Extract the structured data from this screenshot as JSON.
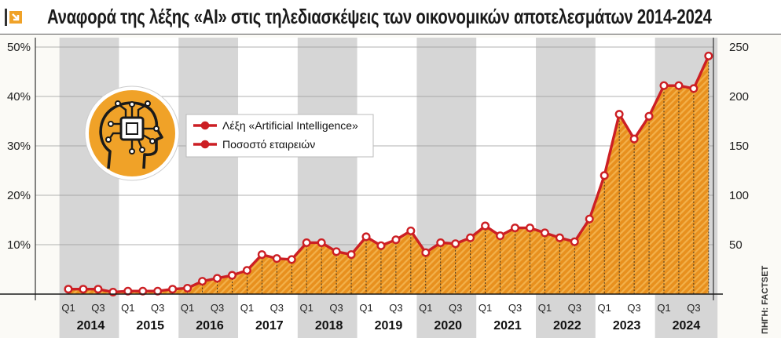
{
  "title": "Αναφορά της λέξης «AI» στις τηλεδιασκέψεις των οικονομικών αποτελεσμάτων 2014-2024",
  "source": "ΠΗΓΗ: FACTSET",
  "colors": {
    "line": "#cc1f24",
    "area_fill": "#e8901e",
    "area_stripes": "#f2b04a",
    "band_gray": "#d6d6d6",
    "icon_circle": "#f0a228",
    "axis": "#333333"
  },
  "icon": "ai-head-chip-icon",
  "chart_data": {
    "type": "line",
    "legend": {
      "placement": "top-left",
      "entries": [
        "Λέξη «Artificial Intelligence»",
        "Ποσοστό εταιρειών"
      ]
    },
    "y_left": {
      "ticks": [
        "10%",
        "20%",
        "30%",
        "40%",
        "50%"
      ],
      "range": [
        0,
        50
      ]
    },
    "y_right": {
      "ticks": [
        "50",
        "100",
        "150",
        "200",
        "250"
      ],
      "range": [
        0,
        250
      ]
    },
    "years": [
      "2014",
      "2015",
      "2016",
      "2017",
      "2018",
      "2019",
      "2020",
      "2021",
      "2022",
      "2023",
      "2024"
    ],
    "quarter_labels": [
      "Q1",
      "Q3"
    ],
    "series": [
      {
        "axis": "right",
        "values": [
          5,
          5,
          5,
          2,
          3,
          3,
          3,
          5,
          6,
          13,
          16,
          19,
          24,
          40,
          36,
          35,
          52,
          52,
          43,
          40,
          58,
          49,
          55,
          64,
          42,
          52,
          51,
          57,
          69,
          59,
          67,
          67,
          62,
          57,
          53,
          76,
          120,
          182,
          157,
          180,
          211,
          211,
          208,
          241
        ]
      }
    ]
  }
}
